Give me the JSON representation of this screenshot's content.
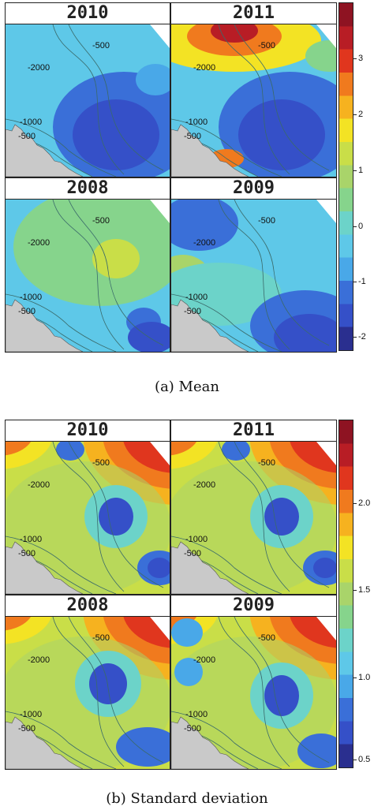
{
  "figure_a": {
    "caption": "(a) Mean",
    "panels": [
      {
        "year": "2010"
      },
      {
        "year": "2011"
      },
      {
        "year": "2008"
      },
      {
        "year": "2009"
      }
    ],
    "colorbar": {
      "ticks": [
        "3",
        "2",
        "1",
        "0",
        "-1",
        "-2"
      ],
      "range": [
        -2.3,
        3.6
      ]
    },
    "contour_labels": [
      "-500",
      "-2000",
      "-1000",
      "-500"
    ]
  },
  "figure_b": {
    "caption": "(b) Standard deviation",
    "panels": [
      {
        "year": "2010"
      },
      {
        "year": "2011"
      },
      {
        "year": "2008"
      },
      {
        "year": "2009"
      }
    ],
    "colorbar": {
      "ticks": [
        "2.0",
        "1.5",
        "1.0",
        "0.5"
      ],
      "range": [
        0.45,
        2.45
      ]
    },
    "contour_labels": [
      "-500",
      "-2000",
      "-1000",
      "-500"
    ]
  },
  "colors": {
    "land": "#c9c9c9",
    "contour": "#3a6a6a",
    "colormap": [
      "#2a2f8f",
      "#3550c8",
      "#3a6fd8",
      "#49a8e8",
      "#5ec8e8",
      "#6cd3c9",
      "#86d48c",
      "#a9d46a",
      "#c9de48",
      "#f3e324",
      "#f6b21f",
      "#f07a1e",
      "#e0361e",
      "#b81d25",
      "#8e1322"
    ]
  }
}
